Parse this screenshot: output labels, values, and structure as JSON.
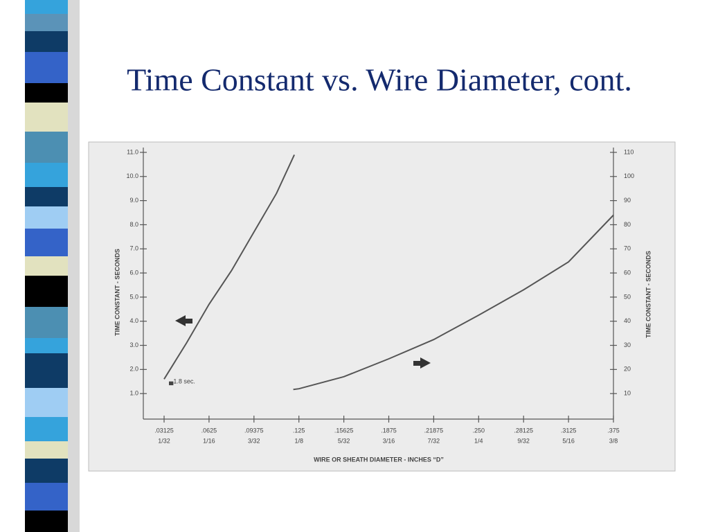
{
  "chart_data": {
    "type": "line",
    "title": "Time Constant vs. Wire Diameter, cont.",
    "x_label": "WIRE OR SHEATH DIAMETER - INCHES “D”",
    "y_label": "TIME CONSTANT - SECONDS",
    "y2_label": "TIME CONSTANT - SECONDS",
    "annotation": "▄1.8 sec.",
    "xlim": [
      0.0168,
      0.375
    ],
    "xticks": [
      {
        "value": 0.03125,
        "label": ".03125"
      },
      {
        "value": 0.0625,
        "label": ".0625"
      },
      {
        "value": 0.09375,
        "label": ".09375"
      },
      {
        "value": 0.125,
        "label": ".125"
      },
      {
        "value": 0.15625,
        "label": ".15625"
      },
      {
        "value": 0.1875,
        "label": ".1875"
      },
      {
        "value": 0.21875,
        "label": ".21875"
      },
      {
        "value": 0.25,
        "label": ".250"
      },
      {
        "value": 0.28125,
        "label": ".28125"
      },
      {
        "value": 0.3125,
        "label": ".3125"
      },
      {
        "value": 0.375,
        "label": ".375"
      }
    ],
    "xtick_fractions": [
      "1/32",
      "1/16",
      "3/32",
      "1/8",
      "5/32",
      "3/16",
      "7/32",
      "1/4",
      "9/32",
      "5/16",
      "3/8"
    ],
    "ylim": [
      0,
      11.2
    ],
    "yticks": [
      {
        "value": 1,
        "label": "1.0"
      },
      {
        "value": 2,
        "label": "2.0"
      },
      {
        "value": 3,
        "label": "3.0"
      },
      {
        "value": 4,
        "label": "4.0"
      },
      {
        "value": 5,
        "label": "5.0"
      },
      {
        "value": 6,
        "label": "6.0"
      },
      {
        "value": 7,
        "label": "7.0"
      },
      {
        "value": 8,
        "label": "8.0"
      },
      {
        "value": 9,
        "label": "9.0"
      },
      {
        "value": 10,
        "label": "10.0"
      },
      {
        "value": 11,
        "label": "11.0"
      }
    ],
    "y2lim": [
      0,
      112
    ],
    "y2ticks": [
      10,
      20,
      30,
      40,
      50,
      60,
      70,
      80,
      90,
      100,
      110
    ],
    "grid": false,
    "series": [
      {
        "color": "#555555",
        "x": [
          0.03125,
          0.046875,
          0.0625,
          0.078125,
          0.09375,
          0.109375,
          0.1218
        ],
        "values": [
          1.6,
          3.1,
          4.7,
          6.1,
          7.7,
          9.3,
          10.9
        ]
      },
      {
        "color": "#555555",
        "axis": "y2",
        "x": [
          0.1211,
          0.125,
          0.15625,
          0.1875,
          0.21875,
          0.25,
          0.28125,
          0.3125,
          0.375
        ],
        "values": [
          11.7,
          12,
          17,
          24.4,
          32.4,
          42.5,
          53,
          64.6,
          84
        ]
      }
    ]
  }
}
